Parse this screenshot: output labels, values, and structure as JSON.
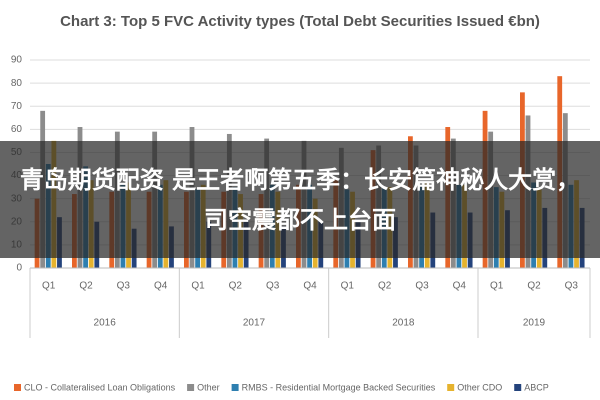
{
  "chart_data": {
    "type": "bar",
    "title": "Chart 3: Top 5 FVC Activity types (Total Debt Securities Issued €bn)",
    "groups": [
      {
        "name": "2016",
        "categories": [
          "Q1",
          "Q2",
          "Q3",
          "Q4"
        ]
      },
      {
        "name": "2017",
        "categories": [
          "Q1",
          "Q2",
          "Q3",
          "Q4"
        ]
      },
      {
        "name": "2018",
        "categories": [
          "Q1",
          "Q2",
          "Q3",
          "Q4"
        ]
      },
      {
        "name": "2019",
        "categories": [
          "Q1",
          "Q2",
          "Q3"
        ]
      }
    ],
    "series": [
      {
        "name": "CLO - Collateralised Loan Obligations",
        "color": "#e8662a",
        "values": [
          30,
          32,
          33,
          33,
          33,
          33,
          32,
          36,
          38,
          51,
          57,
          61,
          68,
          76,
          83
        ]
      },
      {
        "name": "Other",
        "color": "#8c8c8c",
        "values": [
          68,
          61,
          59,
          59,
          61,
          58,
          56,
          55,
          52,
          53,
          53,
          56,
          59,
          66,
          67
        ]
      },
      {
        "name": "RMBS - Residential Mortgage Backed Securities",
        "color": "#2e7fb0",
        "values": [
          45,
          44,
          36,
          36,
          34,
          35,
          36,
          36,
          34,
          35,
          36,
          36,
          35,
          37,
          36
        ]
      },
      {
        "name": "Other CDO",
        "color": "#e6b32e",
        "values": [
          55,
          38,
          37,
          38,
          36,
          32,
          33,
          30,
          33,
          35,
          37,
          36,
          33,
          34,
          38
        ]
      },
      {
        "name": "ABCP",
        "color": "#24437c",
        "values": [
          22,
          20,
          17,
          18,
          20,
          21,
          18,
          20,
          21,
          22,
          24,
          24,
          25,
          26,
          26
        ]
      }
    ],
    "ylim": [
      0,
      90
    ],
    "yticks": [
      0,
      10,
      20,
      30,
      40,
      50,
      60,
      70,
      80,
      90
    ],
    "grid": true
  },
  "overlay_text": "青岛期货配资 是王者啊第五季：长安篇神秘人大赏，司空震都不上台面"
}
